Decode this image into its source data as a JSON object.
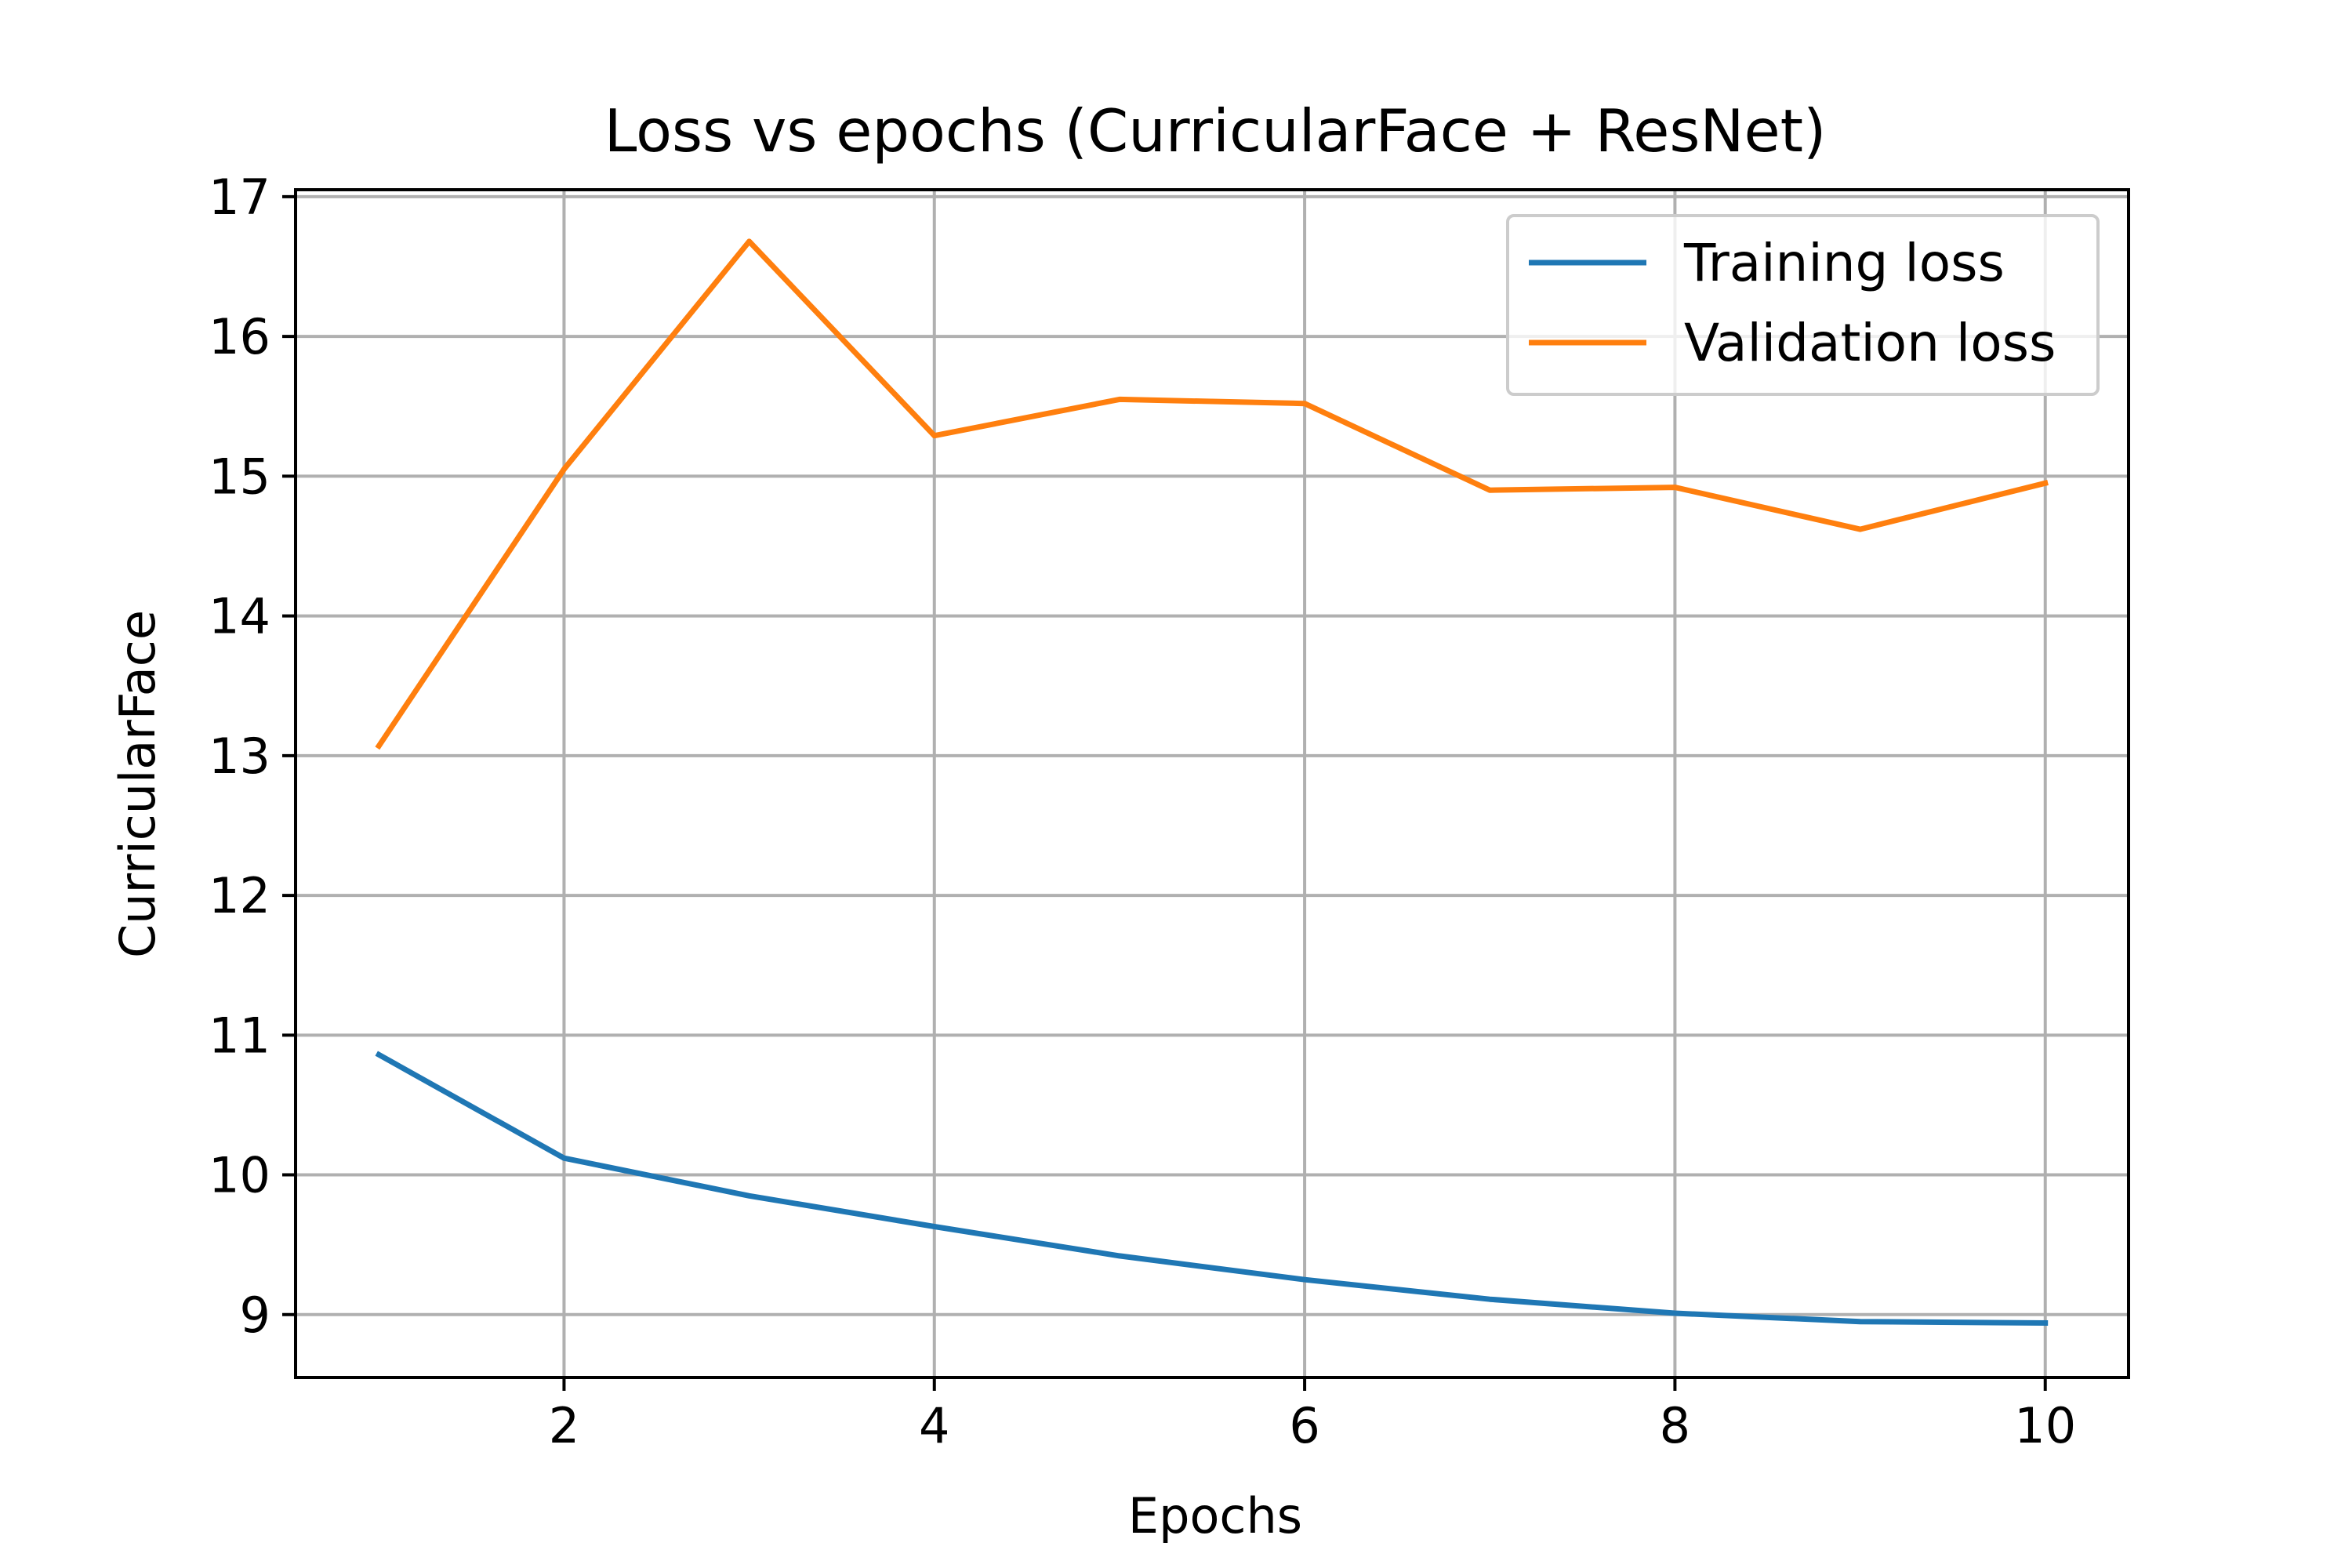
{
  "chart_data": {
    "type": "line",
    "title": "Loss vs epochs (CurricularFace + ResNet)",
    "xlabel": "Epochs",
    "ylabel": "CurricularFace",
    "x": [
      1,
      2,
      3,
      4,
      5,
      6,
      7,
      8,
      9,
      10
    ],
    "xticks": [
      2,
      4,
      6,
      8,
      10
    ],
    "yticks": [
      9,
      10,
      11,
      12,
      13,
      14,
      15,
      16,
      17
    ],
    "xlim": [
      0.55,
      10.45
    ],
    "ylim": [
      8.55,
      17.05
    ],
    "grid": true,
    "legend_position": "top-right",
    "series": [
      {
        "name": "Training loss",
        "color": "#1f77b4",
        "values": [
          10.86,
          10.12,
          9.85,
          9.63,
          9.42,
          9.25,
          9.11,
          9.01,
          8.95,
          8.94
        ]
      },
      {
        "name": "Validation loss",
        "color": "#ff7f0e",
        "values": [
          13.07,
          15.05,
          16.68,
          15.29,
          15.55,
          15.52,
          14.9,
          14.92,
          14.62,
          14.95
        ]
      }
    ]
  }
}
